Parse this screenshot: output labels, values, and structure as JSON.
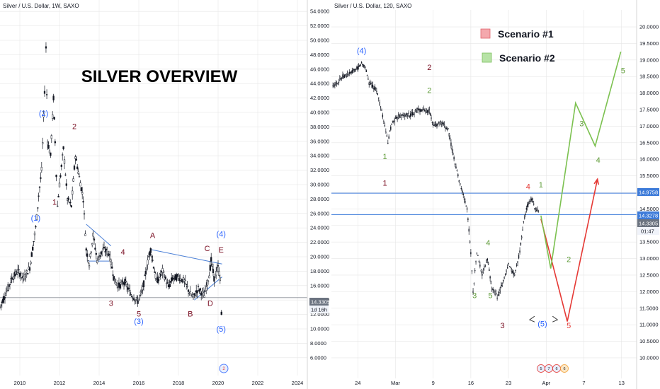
{
  "left_chart": {
    "header": "Silver / U.S. Dollar, 1W, SAXO",
    "overlay_title": "SILVER OVERVIEW",
    "price_tag": "14.3305",
    "countdown_tag": "1d 16h",
    "event_badge": "2"
  },
  "right_chart": {
    "header": "Silver / U.S. Dollar, 120, SAXO",
    "legend": [
      {
        "label": "Scenario #1",
        "color": "#f4a8ad"
      },
      {
        "label": "Scenario #2",
        "color": "#b7e3a6"
      }
    ],
    "price_tags": [
      "14.9758",
      "14.3278",
      "14.3305",
      "01:47"
    ],
    "event_badges": [
      "5",
      "7",
      "6",
      "6"
    ]
  },
  "colors": {
    "blue": "#2962ff",
    "dark_red": "#7a0f23",
    "red": "#e53935",
    "green": "#5e9b37",
    "trend_blue": "#4a7fd6",
    "hline_blue": "#3d7bd9",
    "candle": "#131722",
    "grid": "#e6e6e6"
  },
  "chart_data": [
    {
      "type": "candlestick",
      "title": "Silver / U.S. Dollar, 1W, SAXO",
      "xlabel": "",
      "ylabel": "",
      "x_ticks": [
        "2010",
        "2012",
        "2014",
        "2016",
        "2018",
        "2020",
        "2022",
        "2024"
      ],
      "y_ticks": [
        "54.0000",
        "52.0000",
        "50.0000",
        "48.0000",
        "46.0000",
        "44.0000",
        "42.0000",
        "40.0000",
        "38.0000",
        "36.0000",
        "34.0000",
        "32.0000",
        "30.0000",
        "28.0000",
        "26.0000",
        "24.0000",
        "22.0000",
        "20.0000",
        "18.0000",
        "16.0000",
        "14.0000",
        "12.0000",
        "10.0000",
        "8.0000",
        "6.0000"
      ],
      "ylim": [
        5,
        55
      ],
      "xlim": [
        2009.0,
        2024.5
      ],
      "price_path": [
        {
          "x": 2009.0,
          "y": 13.0
        },
        {
          "x": 2009.3,
          "y": 15.0
        },
        {
          "x": 2009.6,
          "y": 17.0
        },
        {
          "x": 2009.9,
          "y": 18.0
        },
        {
          "x": 2010.2,
          "y": 17.0
        },
        {
          "x": 2010.5,
          "y": 18.5
        },
        {
          "x": 2010.8,
          "y": 24.0
        },
        {
          "x": 2010.95,
          "y": 28.5
        },
        {
          "x": 2011.1,
          "y": 32.0
        },
        {
          "x": 2011.25,
          "y": 43.0
        },
        {
          "x": 2011.32,
          "y": 49.0
        },
        {
          "x": 2011.4,
          "y": 36.0
        },
        {
          "x": 2011.55,
          "y": 34.0
        },
        {
          "x": 2011.7,
          "y": 42.0
        },
        {
          "x": 2011.78,
          "y": 36.0
        },
        {
          "x": 2011.9,
          "y": 27.0
        },
        {
          "x": 2012.0,
          "y": 30.0
        },
        {
          "x": 2012.2,
          "y": 35.0
        },
        {
          "x": 2012.4,
          "y": 28.0
        },
        {
          "x": 2012.6,
          "y": 27.0
        },
        {
          "x": 2012.8,
          "y": 34.0
        },
        {
          "x": 2013.0,
          "y": 31.0
        },
        {
          "x": 2013.2,
          "y": 28.0
        },
        {
          "x": 2013.35,
          "y": 21.0
        },
        {
          "x": 2013.5,
          "y": 19.0
        },
        {
          "x": 2013.7,
          "y": 23.0
        },
        {
          "x": 2013.9,
          "y": 19.5
        },
        {
          "x": 2014.2,
          "y": 21.0
        },
        {
          "x": 2014.5,
          "y": 20.5
        },
        {
          "x": 2014.8,
          "y": 16.5
        },
        {
          "x": 2015.0,
          "y": 16.0
        },
        {
          "x": 2015.3,
          "y": 16.5
        },
        {
          "x": 2015.6,
          "y": 14.8
        },
        {
          "x": 2015.95,
          "y": 13.8
        },
        {
          "x": 2016.2,
          "y": 15.5
        },
        {
          "x": 2016.5,
          "y": 20.0
        },
        {
          "x": 2016.6,
          "y": 21.0
        },
        {
          "x": 2016.9,
          "y": 16.5
        },
        {
          "x": 2017.2,
          "y": 18.0
        },
        {
          "x": 2017.5,
          "y": 15.8
        },
        {
          "x": 2017.7,
          "y": 17.0
        },
        {
          "x": 2018.0,
          "y": 17.2
        },
        {
          "x": 2018.3,
          "y": 16.6
        },
        {
          "x": 2018.6,
          "y": 14.8
        },
        {
          "x": 2018.75,
          "y": 14.4
        },
        {
          "x": 2019.0,
          "y": 15.6
        },
        {
          "x": 2019.3,
          "y": 14.6
        },
        {
          "x": 2019.55,
          "y": 17.5
        },
        {
          "x": 2019.65,
          "y": 19.5
        },
        {
          "x": 2019.8,
          "y": 17.0
        },
        {
          "x": 2020.0,
          "y": 18.5
        },
        {
          "x": 2020.1,
          "y": 17.0
        },
        {
          "x": 2020.17,
          "y": 12.0
        },
        {
          "x": 2020.2,
          "y": 14.3
        }
      ],
      "lines": [
        {
          "name": "current-price-line",
          "points": [
            {
              "x": 2009.0,
              "y": 14.3305
            },
            {
              "x": 2024.5,
              "y": 14.3305
            }
          ]
        },
        {
          "name": "trendline-upper",
          "points": [
            {
              "x": 2013.35,
              "y": 24.5
            },
            {
              "x": 2014.6,
              "y": 21.5
            }
          ]
        },
        {
          "name": "trendline-lower",
          "points": [
            {
              "x": 2013.4,
              "y": 19.4
            },
            {
              "x": 2014.5,
              "y": 19.4
            }
          ]
        },
        {
          "name": "triangle-upper",
          "points": [
            {
              "x": 2016.6,
              "y": 21.0
            },
            {
              "x": 2020.2,
              "y": 19.0
            }
          ]
        },
        {
          "name": "triangle-lower",
          "points": [
            {
              "x": 2018.8,
              "y": 14.0
            },
            {
              "x": 2020.2,
              "y": 17.2
            }
          ]
        }
      ],
      "annotations": [
        {
          "text": "(1)",
          "x": 2010.8,
          "y": 25.0,
          "color": "blue"
        },
        {
          "text": "(2)",
          "x": 2011.2,
          "y": 39.5,
          "color": "blue"
        },
        {
          "text": "1",
          "x": 2011.75,
          "y": 27.2,
          "color": "dark_red"
        },
        {
          "text": "2",
          "x": 2012.75,
          "y": 37.7,
          "color": "dark_red"
        },
        {
          "text": "3",
          "x": 2014.6,
          "y": 13.2,
          "color": "dark_red"
        },
        {
          "text": "4",
          "x": 2015.2,
          "y": 20.3,
          "color": "dark_red"
        },
        {
          "text": "5",
          "x": 2016.0,
          "y": 11.7,
          "color": "dark_red"
        },
        {
          "text": "(3)",
          "x": 2016.0,
          "y": 10.7,
          "color": "blue"
        },
        {
          "text": "A",
          "x": 2016.7,
          "y": 22.6,
          "color": "dark_red"
        },
        {
          "text": "B",
          "x": 2018.6,
          "y": 11.7,
          "color": "dark_red"
        },
        {
          "text": "C",
          "x": 2019.45,
          "y": 20.8,
          "color": "dark_red"
        },
        {
          "text": "D",
          "x": 2019.6,
          "y": 13.2,
          "color": "dark_red"
        },
        {
          "text": "E",
          "x": 2020.15,
          "y": 20.6,
          "color": "dark_red"
        },
        {
          "text": "(4)",
          "x": 2020.15,
          "y": 22.8,
          "color": "blue"
        },
        {
          "text": "(5)",
          "x": 2020.15,
          "y": 9.6,
          "color": "blue"
        }
      ]
    },
    {
      "type": "candlestick",
      "title": "Silver / U.S. Dollar, 120, SAXO",
      "xlabel": "",
      "ylabel": "",
      "x_ticks": [
        "24",
        "Mar",
        "9",
        "16",
        "23",
        "Apr",
        "7",
        "13"
      ],
      "x_tick_positions": [
        0,
        5,
        10,
        15,
        20,
        25,
        30,
        35
      ],
      "y_ticks": [
        "20.0000",
        "19.5000",
        "19.0000",
        "18.5000",
        "18.0000",
        "17.5000",
        "17.0000",
        "16.5000",
        "16.0000",
        "15.5000",
        "15.0000",
        "14.5000",
        "14.0000",
        "13.5000",
        "13.0000",
        "12.5000",
        "12.0000",
        "11.5000",
        "11.0000",
        "10.5000",
        "10.0000"
      ],
      "ylim": [
        9.7,
        20.3
      ],
      "xlim": [
        -3.5,
        37.0
      ],
      "price_path": [
        {
          "x": -3.3,
          "y": 18.2
        },
        {
          "x": -2.0,
          "y": 18.5
        },
        {
          "x": -1.0,
          "y": 18.6
        },
        {
          "x": 0.0,
          "y": 18.75
        },
        {
          "x": 0.5,
          "y": 18.9
        },
        {
          "x": 1.0,
          "y": 18.8
        },
        {
          "x": 1.5,
          "y": 18.3
        },
        {
          "x": 2.5,
          "y": 18.1
        },
        {
          "x": 3.3,
          "y": 17.3
        },
        {
          "x": 4.0,
          "y": 16.5
        },
        {
          "x": 4.5,
          "y": 17.1
        },
        {
          "x": 5.5,
          "y": 17.3
        },
        {
          "x": 7.0,
          "y": 17.35
        },
        {
          "x": 8.0,
          "y": 17.5
        },
        {
          "x": 9.5,
          "y": 17.45
        },
        {
          "x": 10.0,
          "y": 17.0
        },
        {
          "x": 11.0,
          "y": 17.1
        },
        {
          "x": 12.0,
          "y": 16.9
        },
        {
          "x": 12.5,
          "y": 16.3
        },
        {
          "x": 13.3,
          "y": 15.5
        },
        {
          "x": 14.0,
          "y": 14.9
        },
        {
          "x": 14.5,
          "y": 14.5
        },
        {
          "x": 15.0,
          "y": 13.2
        },
        {
          "x": 15.3,
          "y": 12.0
        },
        {
          "x": 15.8,
          "y": 13.2
        },
        {
          "x": 16.5,
          "y": 12.5
        },
        {
          "x": 17.2,
          "y": 13.0
        },
        {
          "x": 17.8,
          "y": 12.1
        },
        {
          "x": 18.5,
          "y": 11.85
        },
        {
          "x": 19.3,
          "y": 12.3
        },
        {
          "x": 20.0,
          "y": 12.8
        },
        {
          "x": 20.8,
          "y": 12.5
        },
        {
          "x": 21.5,
          "y": 13.2
        },
        {
          "x": 22.0,
          "y": 14.1
        },
        {
          "x": 22.5,
          "y": 14.6
        },
        {
          "x": 23.1,
          "y": 14.8
        },
        {
          "x": 23.6,
          "y": 14.45
        },
        {
          "x": 24.1,
          "y": 14.45
        }
      ],
      "hlines": [
        {
          "name": "resistance-line",
          "y": 14.9758
        },
        {
          "name": "current-price-line",
          "y": 14.3305
        }
      ],
      "scenarios": [
        {
          "name": "Scenario #1",
          "color": "red",
          "points": [
            {
              "x": 24.3,
              "y": 14.2
            },
            {
              "x": 27.8,
              "y": 11.1
            },
            {
              "x": 31.8,
              "y": 15.4
            }
          ]
        },
        {
          "name": "Scenario #2",
          "color": "green",
          "points": [
            {
              "x": 24.3,
              "y": 14.3
            },
            {
              "x": 25.6,
              "y": 12.7
            },
            {
              "x": 28.9,
              "y": 17.7
            },
            {
              "x": 31.5,
              "y": 16.4
            },
            {
              "x": 34.9,
              "y": 19.25
            }
          ]
        }
      ],
      "projection_arrow": {
        "from": {
          "x": 22.8,
          "y": 11.15
        },
        "to": {
          "x": 26.5,
          "y": 11.15
        }
      },
      "annotations": [
        {
          "text": "(4)",
          "x": 0.5,
          "y": 19.2,
          "color": "blue"
        },
        {
          "text": "2",
          "x": 9.5,
          "y": 18.7,
          "color": "dark_red"
        },
        {
          "text": "2",
          "x": 9.5,
          "y": 18.0,
          "color": "green"
        },
        {
          "text": "1",
          "x": 3.6,
          "y": 16.0,
          "color": "green"
        },
        {
          "text": "1",
          "x": 3.6,
          "y": 15.2,
          "color": "dark_red"
        },
        {
          "text": "4",
          "x": 22.6,
          "y": 15.1,
          "color": "red"
        },
        {
          "text": "1",
          "x": 24.3,
          "y": 15.15,
          "color": "green"
        },
        {
          "text": "4",
          "x": 17.3,
          "y": 13.4,
          "color": "green"
        },
        {
          "text": "3",
          "x": 15.5,
          "y": 11.8,
          "color": "green"
        },
        {
          "text": "5",
          "x": 17.6,
          "y": 11.8,
          "color": "green"
        },
        {
          "text": "3",
          "x": 19.2,
          "y": 10.9,
          "color": "dark_red"
        },
        {
          "text": "(5)",
          "x": 24.5,
          "y": 10.95,
          "color": "blue"
        },
        {
          "text": "5",
          "x": 28.0,
          "y": 10.9,
          "color": "red"
        },
        {
          "text": "2",
          "x": 28.0,
          "y": 12.9,
          "color": "green"
        },
        {
          "text": "3",
          "x": 29.7,
          "y": 17.0,
          "color": "green"
        },
        {
          "text": "4",
          "x": 31.9,
          "y": 15.9,
          "color": "green"
        },
        {
          "text": "5",
          "x": 35.2,
          "y": 18.6,
          "color": "green"
        }
      ]
    }
  ]
}
